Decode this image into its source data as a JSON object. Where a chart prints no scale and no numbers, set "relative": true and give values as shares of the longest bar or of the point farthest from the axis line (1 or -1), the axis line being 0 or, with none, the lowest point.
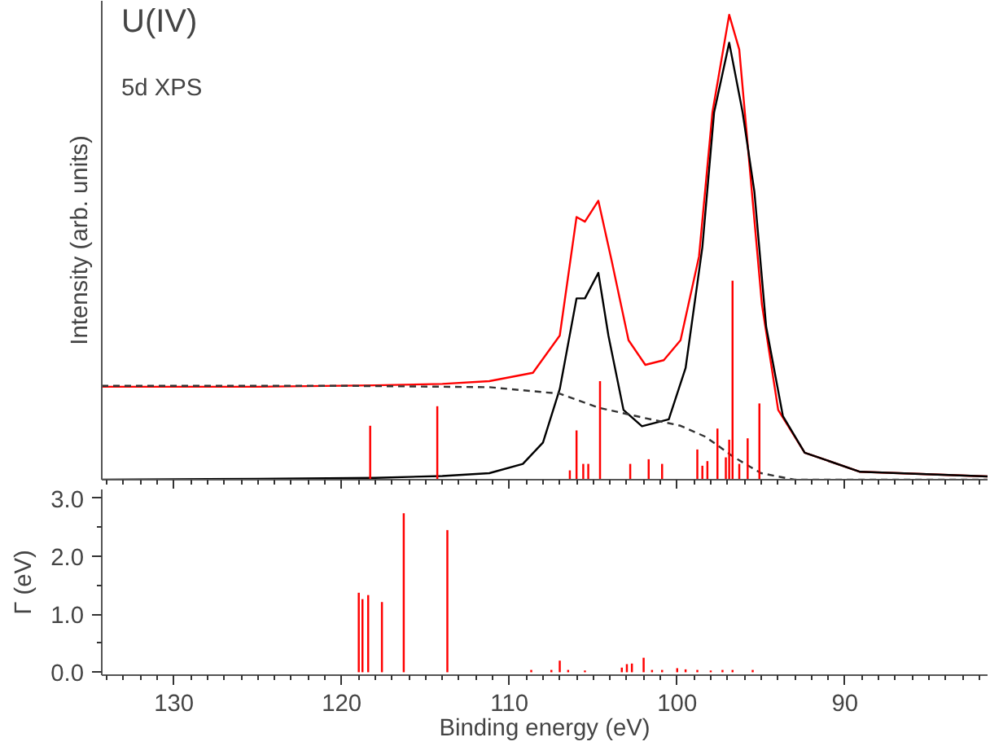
{
  "chart_data": [
    {
      "type": "line",
      "relative": true,
      "ylabel": "Intensity (arb. units)",
      "annotations": [
        "U(IV)",
        "5d XPS"
      ],
      "xlim": [
        134.3,
        81.5
      ],
      "xticks": [
        130,
        120,
        110,
        100,
        90
      ],
      "tick_labels": false,
      "grid": false,
      "marker": "none",
      "series": [
        {
          "color": "#ff0000",
          "x": [
            134.3,
            125,
            118,
            114,
            111.2,
            108.6,
            107.0,
            106.0,
            105.5,
            104.7,
            103.9,
            102.9,
            101.9,
            100.8,
            99.8,
            98.7,
            97.9,
            96.9,
            96.3,
            95.6,
            94.95,
            93.98,
            92.4,
            89.1,
            81.5
          ],
          "values": [
            0.2,
            0.2,
            0.203,
            0.206,
            0.212,
            0.23,
            0.31,
            0.565,
            0.555,
            0.6,
            0.47,
            0.3,
            0.247,
            0.257,
            0.3,
            0.48,
            0.79,
            1.0,
            0.925,
            0.64,
            0.377,
            0.15,
            0.058,
            0.017,
            0.007
          ]
        },
        {
          "color": "#000000",
          "x": [
            134.3,
            125,
            118,
            114,
            111.2,
            109.2,
            108.0,
            107.0,
            106.0,
            105.5,
            104.7,
            104.1,
            103.2,
            102.1,
            100.5,
            99.5,
            98.5,
            97.8,
            96.9,
            96.1,
            95.4,
            94.7,
            93.7,
            92.4,
            89.1,
            81.5
          ],
          "values": [
            0.0,
            0.002,
            0.004,
            0.008,
            0.014,
            0.034,
            0.08,
            0.195,
            0.39,
            0.39,
            0.445,
            0.31,
            0.15,
            0.115,
            0.13,
            0.24,
            0.5,
            0.79,
            0.94,
            0.79,
            0.62,
            0.33,
            0.137,
            0.058,
            0.017,
            0.007
          ]
        },
        {
          "color": "#333333",
          "line_style": "dashed",
          "x": [
            134.3,
            120,
            111.2,
            107.0,
            104.7,
            102.1,
            99.8,
            98.3,
            96.6,
            95.0,
            93.0,
            81.5
          ],
          "values": [
            0.202,
            0.202,
            0.199,
            0.185,
            0.155,
            0.134,
            0.116,
            0.092,
            0.048,
            0.014,
            0.0,
            0.0
          ]
        },
        {
          "type": "bar",
          "color": "#ff0000",
          "x": [
            118.3,
            114.3,
            106.4,
            106.0,
            105.6,
            105.3,
            104.6,
            102.8,
            101.7,
            100.9,
            98.8,
            98.5,
            98.2,
            97.6,
            97.1,
            96.9,
            96.7,
            96.3,
            95.8,
            95.1
          ],
          "values": [
            0.116,
            0.158,
            0.02,
            0.106,
            0.034,
            0.034,
            0.212,
            0.034,
            0.044,
            0.034,
            0.065,
            0.03,
            0.04,
            0.11,
            0.048,
            0.086,
            0.428,
            0.034,
            0.089,
            0.164
          ]
        }
      ]
    },
    {
      "type": "bar",
      "ylabel": "Γ (eV)",
      "xlabel": "Binding energy (eV)",
      "color": "#ff0000",
      "xlim": [
        134.3,
        81.5
      ],
      "ylim": [
        -0.05,
        3.15
      ],
      "xticks": [
        130,
        120,
        110,
        100,
        90
      ],
      "yticks": [
        {
          "value": 0,
          "label": "0.0"
        },
        {
          "value": 0.5,
          "label": null
        },
        {
          "value": 1,
          "label": "1.0"
        },
        {
          "value": 1.5,
          "label": null
        },
        {
          "value": 2,
          "label": "2.0"
        },
        {
          "value": 2.5,
          "label": null
        },
        {
          "value": 3,
          "label": "3.0"
        }
      ],
      "grid": false,
      "x": [
        118.98,
        118.76,
        118.42,
        117.6,
        116.3,
        113.7,
        110.8,
        109.8,
        108.7,
        107.5,
        107.0,
        106.5,
        105.5,
        104.7,
        103.3,
        103.0,
        102.7,
        102.0,
        101.5,
        100.9,
        100.0,
        99.5,
        98.8,
        98.0,
        97.3,
        96.7,
        95.5
      ],
      "values": [
        1.37,
        1.26,
        1.33,
        1.21,
        2.74,
        2.45,
        null,
        null,
        0.04,
        0.04,
        0.2,
        0.04,
        0.03,
        null,
        0.08,
        0.14,
        0.15,
        0.25,
        0.04,
        0.04,
        0.07,
        0.05,
        0.04,
        0.03,
        0.04,
        0.04,
        0.04
      ]
    }
  ]
}
